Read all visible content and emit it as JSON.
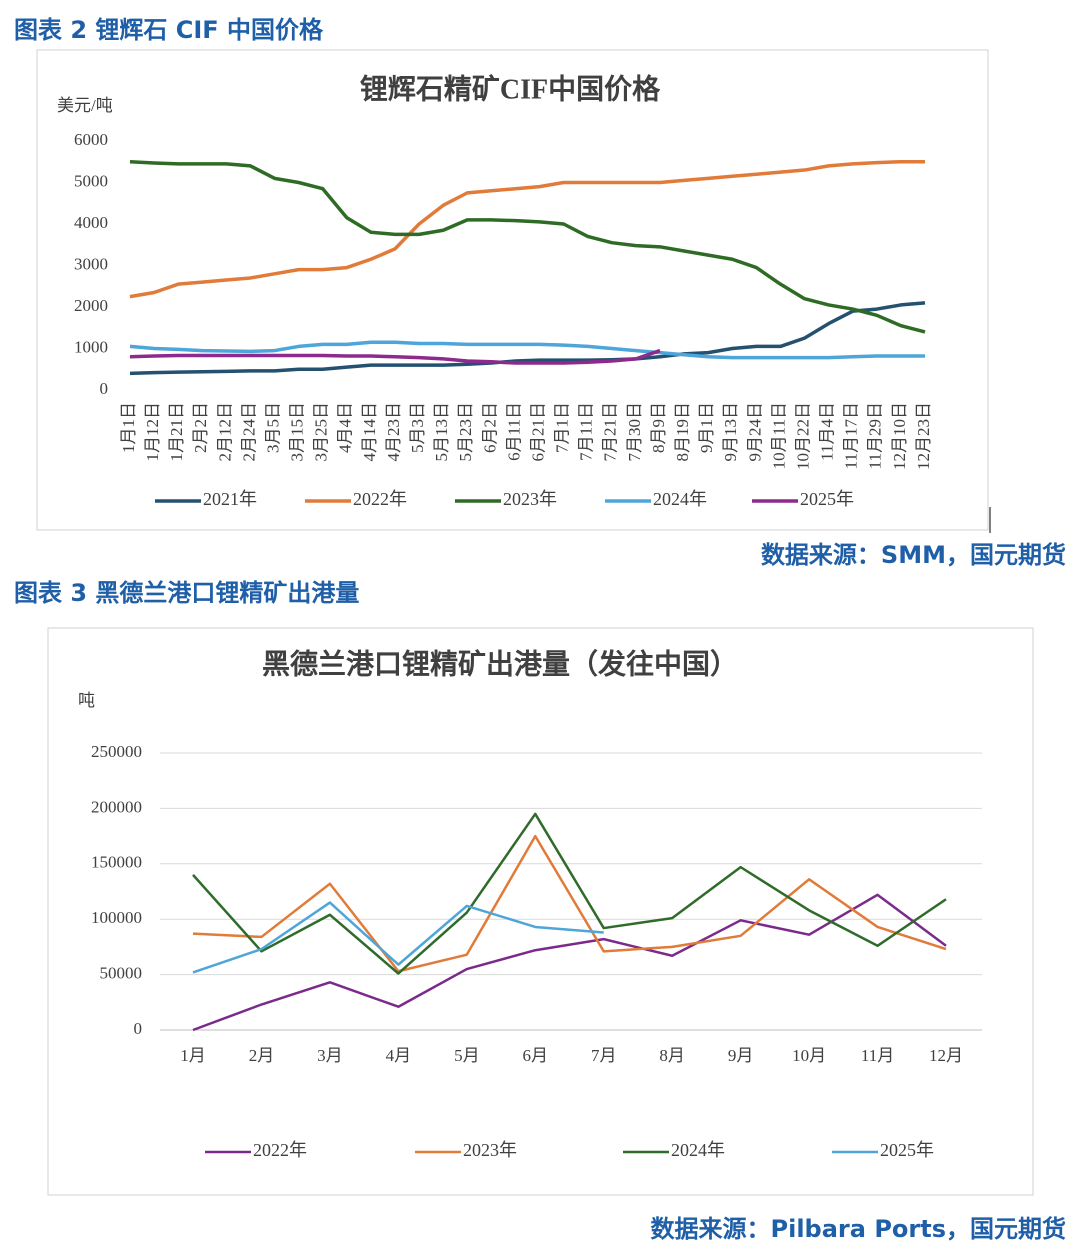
{
  "header1": "图表 2 锂辉石 CIF 中国价格",
  "source1": "数据来源：SMM，国元期货",
  "header2": "图表 3 黑德兰港口锂精矿出港量",
  "source2": "数据来源：Pilbara Ports，国元期货",
  "chart_data": [
    {
      "type": "line",
      "title": "锂辉石精矿CIF中国价格",
      "y_label": "美元/吨",
      "categories": [
        "1月1日",
        "1月12日",
        "1月21日",
        "2月2日",
        "2月12日",
        "2月24日",
        "3月5日",
        "3月15日",
        "3月25日",
        "4月4日",
        "4月14日",
        "4月23日",
        "5月3日",
        "5月13日",
        "5月23日",
        "6月2日",
        "6月11日",
        "6月21日",
        "7月1日",
        "7月11日",
        "7月21日",
        "7月30日",
        "8月9日",
        "8月19日",
        "9月1日",
        "9月13日",
        "9月24日",
        "10月11日",
        "10月22日",
        "11月4日",
        "11月17日",
        "11月29日",
        "12月10日",
        "12月23日"
      ],
      "series": [
        {
          "name": "2021年",
          "color": "#245170",
          "values": [
            400,
            420,
            430,
            440,
            450,
            460,
            460,
            500,
            500,
            550,
            600,
            600,
            600,
            600,
            620,
            650,
            700,
            720,
            720,
            720,
            730,
            750,
            800,
            870,
            900,
            1000,
            1050,
            1050,
            1250,
            1600,
            1900,
            1950,
            2050,
            2100
          ]
        },
        {
          "name": "2022年",
          "color": "#e07b39",
          "values": [
            2250,
            2350,
            2550,
            2600,
            2650,
            2700,
            2800,
            2900,
            2900,
            2950,
            3150,
            3400,
            4000,
            4450,
            4750,
            4800,
            4850,
            4900,
            5000,
            5000,
            5000,
            5000,
            5000,
            5050,
            5100,
            5150,
            5200,
            5250,
            5300,
            5400,
            5450,
            5480,
            5500,
            5500
          ]
        },
        {
          "name": "2023年",
          "color": "#2e6b24",
          "values": [
            5500,
            5470,
            5450,
            5450,
            5450,
            5400,
            5100,
            5000,
            4850,
            4150,
            3800,
            3750,
            3750,
            3850,
            4100,
            4100,
            4080,
            4050,
            4000,
            3700,
            3550,
            3480,
            3450,
            3350,
            3250,
            3150,
            2950,
            2550,
            2200,
            2050,
            1950,
            1800,
            1550,
            1400
          ]
        },
        {
          "name": "2024年",
          "color": "#4ea5d9",
          "values": [
            1050,
            1000,
            980,
            950,
            940,
            930,
            950,
            1050,
            1100,
            1100,
            1150,
            1150,
            1120,
            1120,
            1100,
            1100,
            1100,
            1100,
            1080,
            1050,
            1000,
            950,
            900,
            850,
            800,
            780,
            780,
            780,
            780,
            780,
            800,
            820,
            820,
            820
          ]
        },
        {
          "name": "2025年",
          "color": "#8e2a8e",
          "values": [
            800,
            820,
            830,
            830,
            830,
            830,
            830,
            830,
            830,
            820,
            820,
            800,
            780,
            750,
            700,
            680,
            650,
            650,
            650,
            670,
            700,
            750,
            950,
            null,
            null,
            null,
            null,
            null,
            null,
            null,
            null,
            null,
            null,
            null
          ]
        }
      ],
      "ylim": [
        0,
        6000
      ],
      "yticks": [
        0,
        1000,
        2000,
        3000,
        4000,
        5000,
        6000
      ],
      "grid": false,
      "x_labels_rotated": true
    },
    {
      "type": "line",
      "title": "黑德兰港口锂精矿出港量（发往中国）",
      "y_label": "吨",
      "categories": [
        "1月",
        "2月",
        "3月",
        "4月",
        "5月",
        "6月",
        "7月",
        "8月",
        "9月",
        "10月",
        "11月",
        "12月"
      ],
      "series": [
        {
          "name": "2022年",
          "color": "#7b2a8b",
          "values": [
            0,
            23000,
            43000,
            21000,
            55000,
            72000,
            82000,
            67000,
            99000,
            86000,
            122000,
            76000
          ]
        },
        {
          "name": "2023年",
          "color": "#e07b39",
          "values": [
            87000,
            84000,
            132000,
            53000,
            68000,
            175000,
            71000,
            75000,
            85000,
            136000,
            93000,
            73000
          ]
        },
        {
          "name": "2024年",
          "color": "#2f6b2a",
          "values": [
            140000,
            71000,
            104000,
            51000,
            106000,
            195000,
            92000,
            101000,
            147000,
            108000,
            76000,
            118000
          ]
        },
        {
          "name": "2025年",
          "color": "#4ea5d9",
          "values": [
            52000,
            73000,
            115000,
            59000,
            112000,
            93000,
            88000,
            null,
            null,
            null,
            null,
            null
          ]
        }
      ],
      "ylim": [
        0,
        250000
      ],
      "yticks": [
        0,
        50000,
        100000,
        150000,
        200000,
        250000
      ],
      "grid": true,
      "x_labels_rotated": false
    }
  ]
}
